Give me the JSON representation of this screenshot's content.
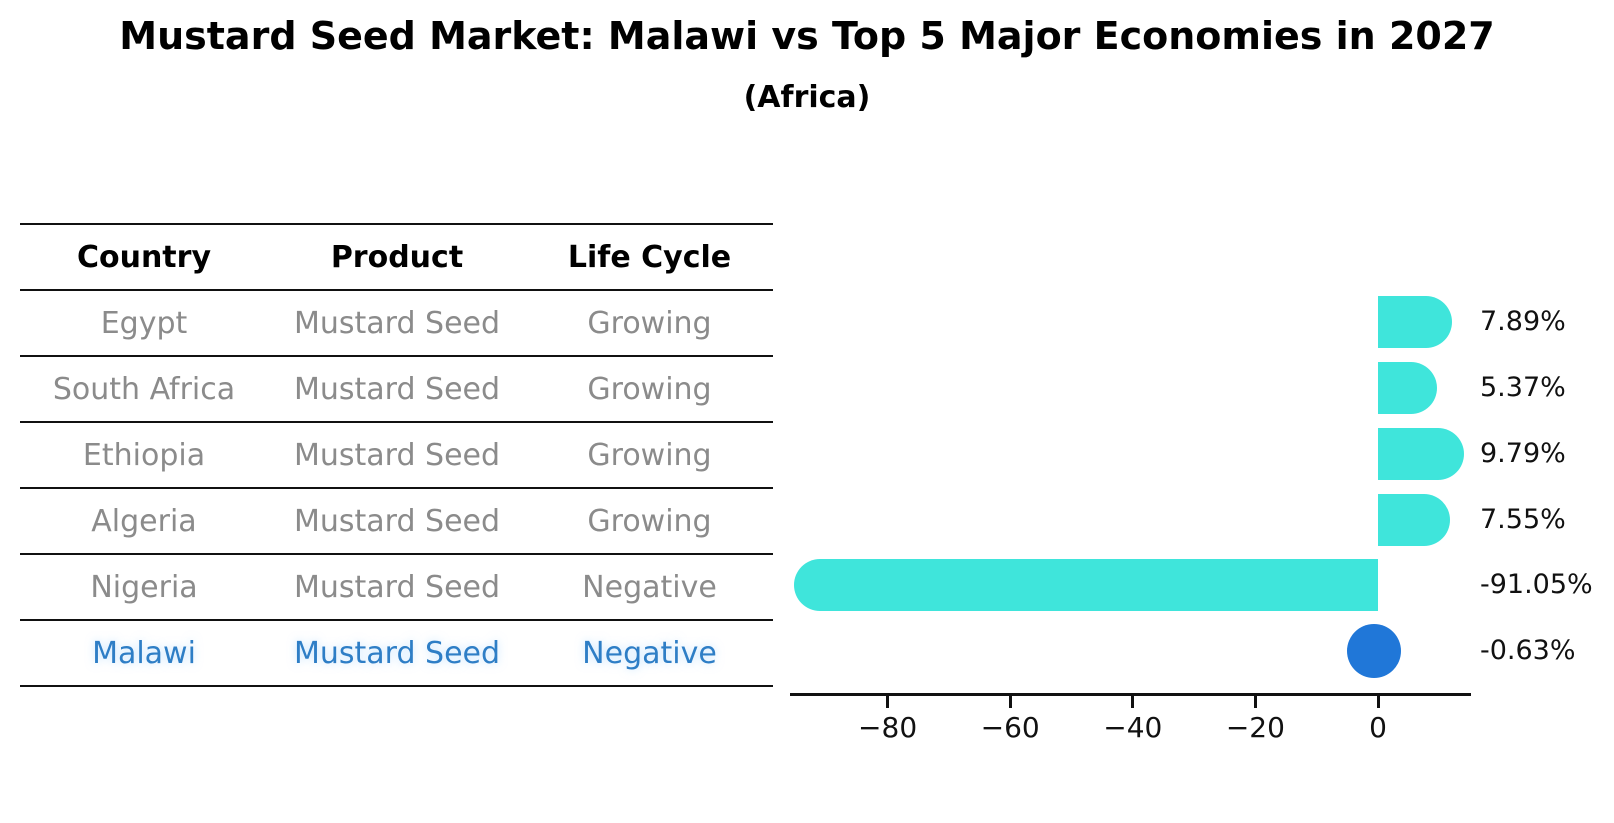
{
  "header": {
    "title": "Mustard Seed Market: Malawi vs Top 5 Major Economies in 2027",
    "subtitle": "(Africa)"
  },
  "table": {
    "columns": [
      "Country",
      "Product",
      "Life Cycle"
    ],
    "rows": [
      {
        "country": "Egypt",
        "product": "Mustard Seed",
        "life_cycle": "Growing",
        "highlighted": false
      },
      {
        "country": "South Africa",
        "product": "Mustard Seed",
        "life_cycle": "Growing",
        "highlighted": false
      },
      {
        "country": "Ethiopia",
        "product": "Mustard Seed",
        "life_cycle": "Growing",
        "highlighted": false
      },
      {
        "country": "Algeria",
        "product": "Mustard Seed",
        "life_cycle": "Growing",
        "highlighted": false
      },
      {
        "country": "Nigeria",
        "product": "Mustard Seed",
        "life_cycle": "Negative",
        "highlighted": false
      },
      {
        "country": "Malawi",
        "product": "Mustard Seed",
        "life_cycle": "Negative",
        "highlighted": true
      }
    ]
  },
  "chart_data": {
    "type": "bar",
    "orientation": "horizontal",
    "title": "Mustard Seed Market: Malawi vs Top 5 Major Economies in 2027",
    "subtitle": "(Africa)",
    "categories": [
      "Egypt",
      "South Africa",
      "Ethiopia",
      "Algeria",
      "Nigeria",
      "Malawi"
    ],
    "values": [
      7.89,
      5.37,
      9.79,
      7.55,
      -91.05,
      -0.63
    ],
    "value_labels": [
      "7.89%",
      "5.37%",
      "9.79%",
      "7.55%",
      "-91.05%",
      "-0.63%"
    ],
    "xlabel": "",
    "ylabel": "",
    "xlim": [
      -95.5,
      15.2
    ],
    "x_ticks": [
      -80,
      -60,
      -40,
      -20,
      0
    ],
    "x_tick_labels": [
      "−80",
      "−60",
      "−40",
      "−20",
      "0"
    ],
    "grid": false,
    "legend": false,
    "bar_color": "#3fe5db",
    "highlight_color": "#2077d8",
    "highlight_category": "Malawi"
  },
  "colors": {
    "bar_cyan": "#3fe5db",
    "dot_blue": "#2077d8",
    "highlight_text": "#2e7ec6",
    "row_text": "#8b8b8b",
    "axis": "#111111"
  }
}
